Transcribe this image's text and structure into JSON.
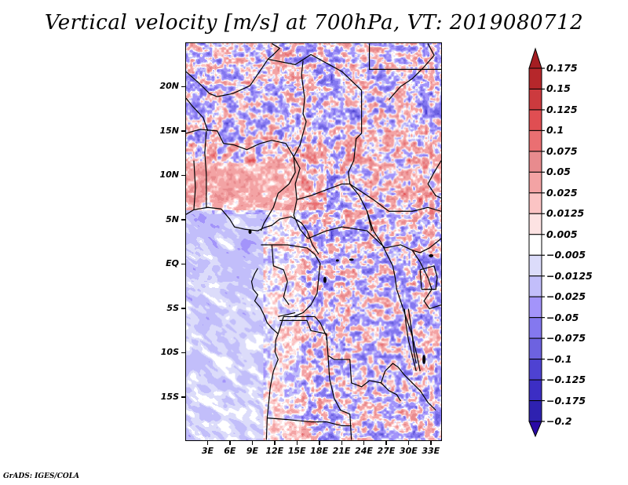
{
  "title": "Vertical velocity [m/s] at 700hPa, VT: 2019080712",
  "footer": "GrADS: IGES/COLA",
  "map": {
    "variable": "Vertical velocity",
    "units": "m/s",
    "level": "700hPa",
    "valid_time": "2019080712",
    "lon_range": [
      0,
      34.5
    ],
    "lat_range": [
      -20,
      25
    ],
    "y_axis": {
      "ticks": [
        {
          "label": "20N",
          "lat": 20
        },
        {
          "label": "15N",
          "lat": 15
        },
        {
          "label": "10N",
          "lat": 10
        },
        {
          "label": "5N",
          "lat": 5
        },
        {
          "label": "EQ",
          "lat": 0
        },
        {
          "label": "5S",
          "lat": -5
        },
        {
          "label": "10S",
          "lat": -10
        },
        {
          "label": "15S",
          "lat": -15
        }
      ]
    },
    "x_axis": {
      "ticks": [
        {
          "label": "3E",
          "lon": 3
        },
        {
          "label": "6E",
          "lon": 6
        },
        {
          "label": "9E",
          "lon": 9
        },
        {
          "label": "12E",
          "lon": 12
        },
        {
          "label": "15E",
          "lon": 15
        },
        {
          "label": "18E",
          "lon": 18
        },
        {
          "label": "21E",
          "lon": 21
        },
        {
          "label": "24E",
          "lon": 24
        },
        {
          "label": "27E",
          "lon": 27
        },
        {
          "label": "30E",
          "lon": 30
        },
        {
          "label": "33E",
          "lon": 33
        }
      ]
    }
  },
  "colorbar": {
    "labels": [
      "0.175",
      "0.15",
      "0.125",
      "0.1",
      "0.075",
      "0.05",
      "0.025",
      "0.0125",
      "0.005",
      "−0.005",
      "−0.0125",
      "−0.025",
      "−0.05",
      "−0.075",
      "−0.1",
      "−0.125",
      "−0.175",
      "−0.2"
    ],
    "levels": [
      0.175,
      0.15,
      0.125,
      0.1,
      0.075,
      0.05,
      0.025,
      0.0125,
      0.005,
      -0.005,
      -0.0125,
      -0.025,
      -0.05,
      -0.075,
      -0.1,
      -0.125,
      -0.175,
      -0.2
    ],
    "top_arrow_color": "#a51d22",
    "bottom_arrow_color": "#2a0aa6",
    "box_colors": [
      "#b6272b",
      "#cc3a3e",
      "#e04e52",
      "#ea6f72",
      "#e88b8e",
      "#f3a3a4",
      "#fbc4c4",
      "#fde3e3",
      "#ffffff",
      "#dcdcfa",
      "#c2befa",
      "#a394fa",
      "#8478ef",
      "#6d62e0",
      "#4e42d2",
      "#3c2ec4",
      "#2e21b0"
    ]
  }
}
